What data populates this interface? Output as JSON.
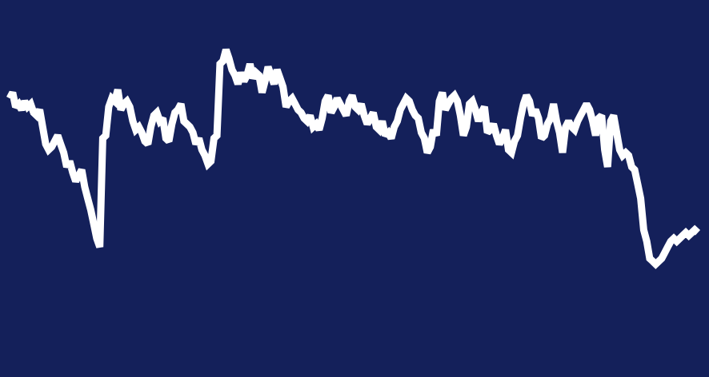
{
  "chart_data": {
    "type": "line",
    "title": "",
    "xlabel": "",
    "ylabel": "",
    "grid": false,
    "legend": "none",
    "axes_visible": false,
    "colors": {
      "background": "#14205a",
      "line": "#ffffff"
    },
    "ylim": [
      0,
      100
    ],
    "series": [
      {
        "x": [
          0,
          1,
          2,
          3,
          4,
          5,
          6,
          7,
          8,
          9,
          10,
          11,
          12,
          13,
          14,
          15,
          16,
          17,
          18,
          19,
          20,
          21,
          22,
          23,
          24,
          25,
          26,
          27,
          28,
          29,
          30,
          31,
          32,
          33,
          34,
          35,
          36,
          37,
          38,
          39,
          40,
          41,
          42,
          43,
          44,
          45,
          46,
          47,
          48,
          49,
          50,
          51,
          52,
          53,
          54,
          55,
          56,
          57,
          58,
          59,
          60,
          61,
          62,
          63,
          64,
          65,
          66,
          67,
          68,
          69,
          70,
          71,
          72,
          73,
          74,
          75,
          76,
          77,
          78,
          79,
          80,
          81,
          82,
          83,
          84,
          85,
          86,
          87,
          88,
          89,
          90,
          91,
          92,
          93,
          94,
          95,
          96,
          97,
          98,
          99,
          100,
          101,
          102,
          103,
          104,
          105,
          106,
          107,
          108,
          109,
          110,
          111,
          112,
          113,
          114,
          115,
          116,
          117,
          118,
          119,
          120,
          121,
          122,
          123,
          124,
          125,
          126,
          127,
          128,
          129,
          130,
          131,
          132,
          133,
          134,
          135,
          136,
          137,
          138,
          139,
          140,
          141,
          142,
          143,
          144,
          145,
          146,
          147,
          148,
          149,
          150,
          151,
          152,
          153,
          154,
          155,
          156,
          157,
          158,
          159,
          160,
          161,
          162,
          163,
          164,
          165,
          166,
          167,
          168,
          169,
          170,
          171,
          172,
          173,
          174,
          175,
          176,
          177,
          178,
          179,
          180,
          181,
          182,
          183,
          184,
          185,
          186,
          187,
          188,
          189,
          190,
          191,
          192,
          193,
          194,
          195,
          196,
          197,
          198,
          199,
          200,
          201,
          202,
          203,
          204,
          205,
          206,
          207,
          208,
          209,
          210,
          211,
          212,
          213,
          214,
          215,
          216,
          217,
          218,
          219,
          220,
          221,
          222,
          223,
          224,
          225,
          226,
          227,
          228,
          229
        ],
        "values": [
          74,
          76,
          71,
          72,
          70,
          73,
          71,
          72,
          69,
          68,
          70,
          64,
          58,
          56,
          57,
          59,
          61,
          58,
          55,
          50,
          52,
          48,
          45,
          47,
          49,
          43,
          39,
          35,
          30,
          25,
          22,
          60,
          61,
          71,
          74,
          73,
          77,
          70,
          72,
          73,
          71,
          66,
          63,
          64,
          62,
          59,
          58,
          64,
          68,
          69,
          66,
          67,
          60,
          59,
          65,
          69,
          70,
          72,
          66,
          65,
          64,
          62,
          58,
          60,
          56,
          54,
          51,
          52,
          60,
          61,
          86,
          87,
          91,
          88,
          84,
          82,
          79,
          83,
          80,
          82,
          86,
          81,
          83,
          82,
          76,
          80,
          85,
          82,
          79,
          84,
          81,
          78,
          71,
          73,
          74,
          72,
          70,
          69,
          67,
          66,
          68,
          64,
          65,
          63,
          67,
          73,
          75,
          69,
          71,
          74,
          72,
          70,
          68,
          73,
          75,
          71,
          70,
          72,
          68,
          65,
          67,
          69,
          64,
          63,
          66,
          61,
          62,
          60,
          64,
          66,
          70,
          72,
          74,
          73,
          70,
          68,
          67,
          62,
          60,
          55,
          57,
          63,
          61,
          73,
          76,
          70,
          72,
          74,
          75,
          73,
          68,
          61,
          64,
          72,
          73,
          70,
          66,
          69,
          71,
          62,
          63,
          65,
          61,
          58,
          60,
          63,
          56,
          55,
          59,
          61,
          67,
          72,
          75,
          73,
          68,
          70,
          67,
          60,
          61,
          65,
          67,
          72,
          66,
          62,
          55,
          64,
          66,
          64,
          63,
          66,
          68,
          70,
          72,
          70,
          66,
          61,
          67,
          68,
          56,
          50,
          66,
          68,
          62,
          56,
          54,
          55,
          54,
          50,
          49,
          44,
          39,
          28,
          24,
          18,
          17,
          16,
          17,
          18,
          20,
          22,
          24,
          25,
          24,
          25,
          26,
          27,
          26,
          27,
          28,
          27
        ],
        "source_note": ""
      }
    ]
  }
}
